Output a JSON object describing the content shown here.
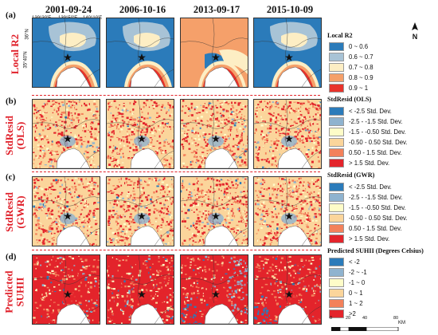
{
  "dates": [
    "2001-09-24",
    "2006-10-16",
    "2013-09-17",
    "2015-10-09"
  ],
  "coords": {
    "lon_1": "139°30'E",
    "lon_2": "139°50'E",
    "lon_3": "140°10'E",
    "lat_1": "36°N",
    "lat_2": "35°40'N"
  },
  "rows": [
    {
      "letter": "(a)",
      "label": "Local R2"
    },
    {
      "letter": "(b)",
      "label_1": "StdResid",
      "label_2": "(OLS)"
    },
    {
      "letter": "(c)",
      "label_1": "StdResid",
      "label_2": "(GWR)"
    },
    {
      "letter": "(d)",
      "label_1": "Predicted",
      "label_2": "SUHII"
    }
  ],
  "legends": [
    {
      "title": "Local R2",
      "items": [
        {
          "label": "0 ~ 0.6",
          "color": "#2b7bba"
        },
        {
          "label": "0.6 ~ 0.7",
          "color": "#a8c3d6"
        },
        {
          "label": "0.7 ~ 0.8",
          "color": "#fdeec4"
        },
        {
          "label": "0.8 ~ 0.9",
          "color": "#f5a06a"
        },
        {
          "label": "0.9 ~ 1",
          "color": "#e8322a"
        }
      ]
    },
    {
      "title": "StdResid (OLS)",
      "items": [
        {
          "label": "< -2.5 Std. Dev.",
          "color": "#2b7bba"
        },
        {
          "label": "-2.5 - -1.5 Std. Dev.",
          "color": "#8fb3cf"
        },
        {
          "label": "-1.5 - -0.50 Std. Dev.",
          "color": "#fefcc8"
        },
        {
          "label": "-0.50 - 0.50 Std. Dev.",
          "color": "#fbd59b"
        },
        {
          "label": "0.50 - 1.5 Std. Dev.",
          "color": "#f3815b"
        },
        {
          "label": "> 1.5 Std. Dev.",
          "color": "#e3242b"
        }
      ]
    },
    {
      "title": "StdResid (GWR)",
      "items": [
        {
          "label": "< -2.5 Std. Dev.",
          "color": "#2b7bba"
        },
        {
          "label": "-2.5 - -1.5 Std. Dev.",
          "color": "#8fb3cf"
        },
        {
          "label": "-1.5 - -0.50 Std. Dev.",
          "color": "#fefcc8"
        },
        {
          "label": "-0.50 - 0.50 Std. Dev.",
          "color": "#fbd59b"
        },
        {
          "label": "0.50 - 1.5 Std. Dev.",
          "color": "#f3815b"
        },
        {
          "label": "> 1.5 Std. Dev.",
          "color": "#e3242b"
        }
      ]
    },
    {
      "title": "Predicted SUHII (Degrees Celsius)",
      "items": [
        {
          "label": "< -2",
          "color": "#2b7bba"
        },
        {
          "label": "-2 ~ -1",
          "color": "#8fb3cf"
        },
        {
          "label": "-1 ~ 0",
          "color": "#fefcc8"
        },
        {
          "label": "0 ~ 1",
          "color": "#fbd59b"
        },
        {
          "label": "1 ~ 2",
          "color": "#f3815b"
        },
        {
          "label": ">2",
          "color": "#e3242b"
        }
      ]
    }
  ],
  "north_label": "N",
  "scale": {
    "ticks": [
      "0",
      "20",
      "40",
      "80"
    ],
    "unit": "KM"
  },
  "colors": {
    "water": "#ffffff",
    "accent_red": "#e3242b"
  }
}
